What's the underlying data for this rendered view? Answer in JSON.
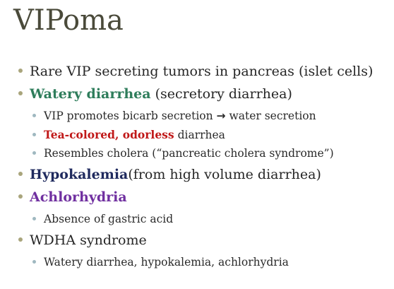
{
  "slide": {
    "title": "VIPoma",
    "bullets": [
      {
        "text": "Rare VIP secreting tumors in pancreas (islet cells)"
      },
      {
        "emph": "Watery diarrhea",
        "text": " (secretory diarrhea)"
      },
      {
        "text_a": "VIP promotes bicarb secretion ",
        "arrow": "→",
        "text_b": " water secretion"
      },
      {
        "emph": "Tea-colored, odorless",
        "text": " diarrhea"
      },
      {
        "text": "Resembles cholera (“pancreatic cholera syndrome”)"
      },
      {
        "emph": "Hypokalemia",
        "text": "(from high volume diarrhea)"
      },
      {
        "emph": "Achlorhydria"
      },
      {
        "text": "Absence of gastric acid"
      },
      {
        "text": "WDHA syndrome"
      },
      {
        "text": "Watery diarrhea, hypokalemia, achlorhydria"
      }
    ]
  },
  "colors": {
    "title": "#4a4a3a",
    "bullet_level1": "#a9a57c",
    "bullet_level2": "#9fb8c0",
    "green_emphasis": "#2e7d5b",
    "red_emphasis": "#c01818",
    "navy_emphasis": "#1f2a5e",
    "purple_emphasis": "#7030a0"
  }
}
